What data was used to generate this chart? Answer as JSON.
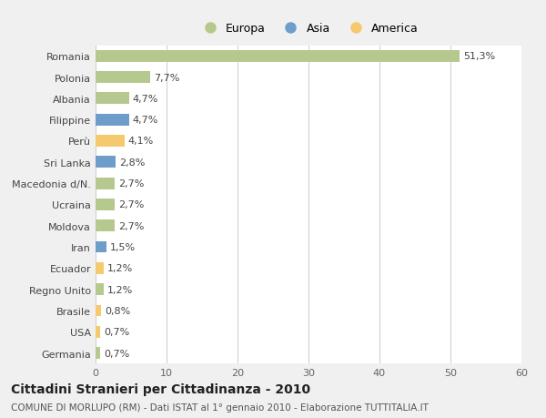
{
  "categories": [
    "Romania",
    "Polonia",
    "Albania",
    "Filippine",
    "Perù",
    "Sri Lanka",
    "Macedonia d/N.",
    "Ucraina",
    "Moldova",
    "Iran",
    "Ecuador",
    "Regno Unito",
    "Brasile",
    "USA",
    "Germania"
  ],
  "values": [
    51.3,
    7.7,
    4.7,
    4.7,
    4.1,
    2.8,
    2.7,
    2.7,
    2.7,
    1.5,
    1.2,
    1.2,
    0.8,
    0.7,
    0.7
  ],
  "labels": [
    "51,3%",
    "7,7%",
    "4,7%",
    "4,7%",
    "4,1%",
    "2,8%",
    "2,7%",
    "2,7%",
    "2,7%",
    "1,5%",
    "1,2%",
    "1,2%",
    "0,8%",
    "0,7%",
    "0,7%"
  ],
  "colors": [
    "#b5c98e",
    "#b5c98e",
    "#b5c98e",
    "#6e9dc9",
    "#f5c96e",
    "#6e9dc9",
    "#b5c98e",
    "#b5c98e",
    "#b5c98e",
    "#6e9dc9",
    "#f5c96e",
    "#b5c98e",
    "#f5c96e",
    "#f5c96e",
    "#b5c98e"
  ],
  "legend_labels": [
    "Europa",
    "Asia",
    "America"
  ],
  "legend_colors": [
    "#b5c98e",
    "#6e9dc9",
    "#f5c96e"
  ],
  "xlim": [
    0,
    60
  ],
  "xticks": [
    0,
    10,
    20,
    30,
    40,
    50,
    60
  ],
  "title": "Cittadini Stranieri per Cittadinanza - 2010",
  "subtitle": "COMUNE DI MORLUPO (RM) - Dati ISTAT al 1° gennaio 2010 - Elaborazione TUTTITALIA.IT",
  "bg_color": "#f0f0f0",
  "plot_bg_color": "#ffffff",
  "bar_height": 0.55,
  "label_fontsize": 8,
  "title_fontsize": 10,
  "subtitle_fontsize": 7.5,
  "tick_fontsize": 8
}
